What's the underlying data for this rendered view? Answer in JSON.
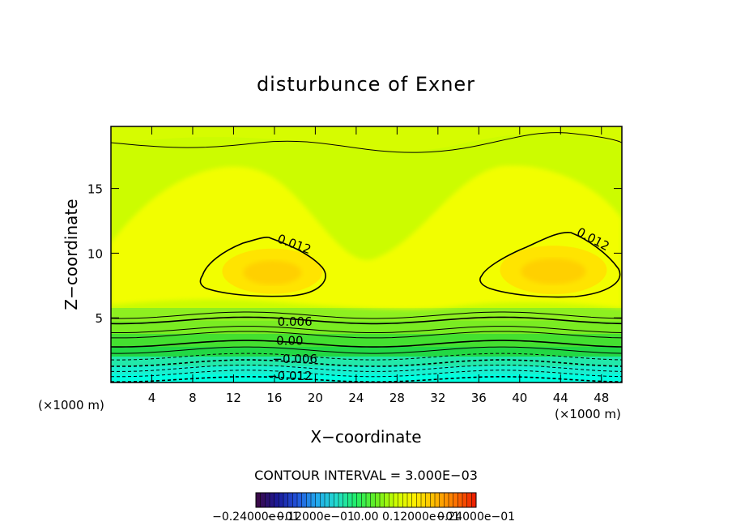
{
  "chart_data": {
    "type": "contour",
    "title": "disturbunce of Exner",
    "xlabel": "X−coordinate",
    "ylabel": "Z−coordinate",
    "x_unit_left": "(×1000 m)",
    "x_unit_right": "(×1000 m)",
    "xlim": [
      0,
      50
    ],
    "ylim": [
      0,
      19.8
    ],
    "xticks": [
      4,
      8,
      12,
      16,
      20,
      24,
      28,
      32,
      36,
      40,
      44,
      48
    ],
    "yticks": [
      5,
      10,
      15
    ],
    "contour_labels": [
      {
        "text": "0.012",
        "x": 17.8,
        "y": 10.4,
        "rotate": 20
      },
      {
        "text": "0.012",
        "x": 47.0,
        "y": 10.8,
        "rotate": 28
      },
      {
        "text": "0.006",
        "x": 18.0,
        "y": 4.4,
        "rotate": 0
      },
      {
        "text": "0.00",
        "x": 17.5,
        "y": 2.9,
        "rotate": 0
      },
      {
        "text": "−0.006",
        "x": 18.0,
        "y": 1.5,
        "rotate": 0
      },
      {
        "text": "−0.012",
        "x": 17.5,
        "y": 0.2,
        "rotate": 0
      }
    ],
    "contour_interval_text": "CONTOUR INTERVAL = 3.000E−03",
    "colorbar": {
      "range": [
        -0.024,
        0.024
      ],
      "tick_labels": [
        "−0.24000e−01",
        "−0.12000e−01",
        "0.00",
        "0.12000e−01",
        "0.24000e−01"
      ],
      "colors": [
        "#3a0a4a",
        "#1a1a9a",
        "#2255dd",
        "#22aaee",
        "#22ddcc",
        "#22ee66",
        "#66ee22",
        "#ccff00",
        "#ffee00",
        "#ffbb00",
        "#ff7700",
        "#ee2200"
      ]
    },
    "field_colors": {
      "negative_strong": "#00ffe0",
      "negative": "#22e8aa",
      "zero": "#22d844",
      "weak_positive": "#8ef020",
      "positive": "#ccfc00",
      "high": "#ffff00",
      "max": "#ffd000"
    }
  }
}
